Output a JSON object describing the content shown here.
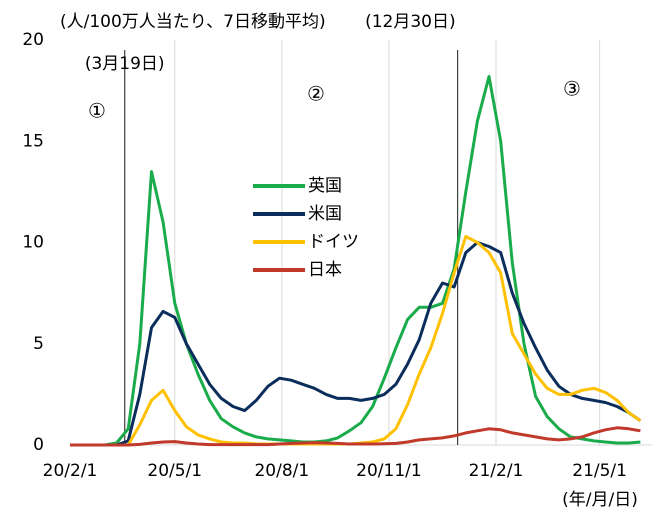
{
  "chart_data": {
    "type": "line",
    "x": [
      "2020-02-01",
      "2020-02-11",
      "2020-02-21",
      "2020-03-02",
      "2020-03-12",
      "2020-03-22",
      "2020-04-01",
      "2020-04-11",
      "2020-04-21",
      "2020-05-01",
      "2020-05-11",
      "2020-05-21",
      "2020-05-31",
      "2020-06-10",
      "2020-06-20",
      "2020-06-30",
      "2020-07-10",
      "2020-07-20",
      "2020-07-30",
      "2020-08-09",
      "2020-08-19",
      "2020-08-29",
      "2020-09-08",
      "2020-09-18",
      "2020-09-28",
      "2020-10-08",
      "2020-10-18",
      "2020-10-28",
      "2020-11-07",
      "2020-11-17",
      "2020-11-27",
      "2020-12-07",
      "2020-12-17",
      "2020-12-27",
      "2021-01-06",
      "2021-01-16",
      "2021-01-26",
      "2021-02-05",
      "2021-02-15",
      "2021-02-25",
      "2021-03-07",
      "2021-03-17",
      "2021-03-27",
      "2021-04-06",
      "2021-04-16",
      "2021-04-26",
      "2021-05-06",
      "2021-05-16",
      "2021-05-26",
      "2021-06-05"
    ],
    "series": [
      {
        "name": "英国",
        "color": "#1aab4b",
        "values": [
          0,
          0,
          0,
          0,
          0.1,
          0.8,
          5,
          13.5,
          11,
          7,
          5,
          3.5,
          2.2,
          1.3,
          0.9,
          0.6,
          0.4,
          0.3,
          0.25,
          0.2,
          0.15,
          0.15,
          0.2,
          0.35,
          0.7,
          1.1,
          1.9,
          3.3,
          4.8,
          6.2,
          6.8,
          6.8,
          7,
          8.7,
          12.5,
          16,
          18.2,
          15,
          9,
          5,
          2.4,
          1.4,
          0.8,
          0.4,
          0.3,
          0.2,
          0.15,
          0.1,
          0.1,
          0.15
        ]
      },
      {
        "name": "米国",
        "color": "#0b2d5b",
        "values": [
          0,
          0,
          0,
          0,
          0,
          0.2,
          2.5,
          5.8,
          6.6,
          6.3,
          5,
          4,
          3,
          2.3,
          1.9,
          1.7,
          2.2,
          2.9,
          3.3,
          3.2,
          3,
          2.8,
          2.5,
          2.3,
          2.3,
          2.2,
          2.3,
          2.5,
          3,
          4,
          5.2,
          7,
          8,
          7.8,
          9.5,
          10,
          9.8,
          9.5,
          7.5,
          6,
          4.8,
          3.7,
          2.9,
          2.5,
          2.3,
          2.2,
          2.1,
          1.9,
          1.6,
          1.2
        ]
      },
      {
        "name": "ドイツ",
        "color": "#ffc000",
        "values": [
          0,
          0,
          0,
          0,
          0,
          0,
          1,
          2.2,
          2.7,
          1.7,
          0.9,
          0.5,
          0.3,
          0.15,
          0.1,
          0.1,
          0.05,
          0.05,
          0.05,
          0.05,
          0.05,
          0.05,
          0.05,
          0.05,
          0.05,
          0.1,
          0.15,
          0.3,
          0.8,
          2,
          3.5,
          4.8,
          6.5,
          8.5,
          10.3,
          10,
          9.5,
          8.5,
          5.5,
          4.5,
          3.5,
          2.8,
          2.5,
          2.5,
          2.7,
          2.8,
          2.6,
          2.2,
          1.6,
          1.2
        ]
      },
      {
        "name": "日本",
        "color": "#c0392b",
        "values": [
          0,
          0,
          0,
          0,
          0,
          0,
          0.03,
          0.1,
          0.15,
          0.17,
          0.1,
          0.05,
          0.02,
          0.02,
          0.02,
          0.02,
          0.02,
          0.02,
          0.05,
          0.08,
          0.1,
          0.12,
          0.1,
          0.08,
          0.05,
          0.05,
          0.05,
          0.06,
          0.08,
          0.15,
          0.25,
          0.3,
          0.35,
          0.45,
          0.6,
          0.7,
          0.8,
          0.75,
          0.6,
          0.5,
          0.4,
          0.3,
          0.25,
          0.3,
          0.4,
          0.6,
          0.75,
          0.85,
          0.8,
          0.7
        ]
      }
    ],
    "xlim": [
      "2020-02-01",
      "2021-06-15"
    ],
    "xticks": [
      {
        "value": "2020-02-01",
        "label": "20/2/1"
      },
      {
        "value": "2020-05-01",
        "label": "20/5/1"
      },
      {
        "value": "2020-08-01",
        "label": "20/8/1"
      },
      {
        "value": "2020-11-01",
        "label": "20/11/1"
      },
      {
        "value": "2021-02-01",
        "label": "21/2/1"
      },
      {
        "value": "2021-05-01",
        "label": "21/5/1"
      }
    ],
    "ylim": [
      0,
      20
    ],
    "yticks": [
      0,
      5,
      10,
      15,
      20
    ],
    "grid": true,
    "vlines": [
      {
        "x": "2020-03-19",
        "label": "(3月19日)"
      },
      {
        "x": "2020-12-30",
        "label": "(12月30日)"
      }
    ],
    "annotations": [
      "(人/100万人当たり、7日移動平均)",
      "①",
      "②",
      "③"
    ],
    "x_label": "(年/月/日)"
  }
}
